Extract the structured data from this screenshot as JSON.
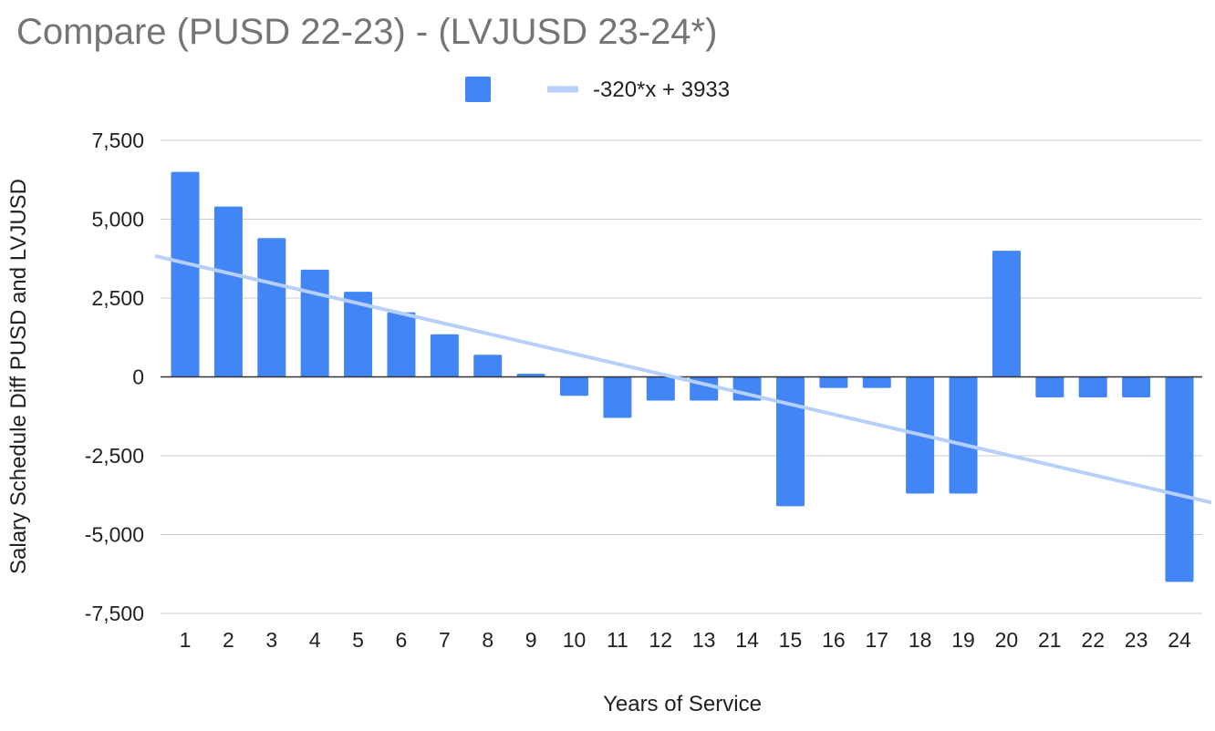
{
  "chart_data": {
    "type": "bar",
    "title": "Compare (PUSD 22-23) - (LVJUSD 23-24*)",
    "xlabel": "Years of Service",
    "ylabel": "Salary Schedule Diff PUSD and LVJUSD",
    "categories": [
      "1",
      "2",
      "3",
      "4",
      "5",
      "6",
      "7",
      "8",
      "9",
      "10",
      "11",
      "12",
      "13",
      "14",
      "15",
      "16",
      "17",
      "18",
      "19",
      "20",
      "21",
      "22",
      "23",
      "24"
    ],
    "series": [
      {
        "values": [
          6500,
          5400,
          4400,
          3400,
          2700,
          2050,
          1350,
          700,
          100,
          -600,
          -1300,
          -750,
          -750,
          -750,
          -4100,
          -350,
          -350,
          -3700,
          -3700,
          4000,
          -650,
          -650,
          -650,
          -6500
        ],
        "color": "#4285f4"
      }
    ],
    "trendline": {
      "name": "-320*x + 3933",
      "slope": -320,
      "intercept": 3933,
      "color": "#b6cffb"
    },
    "y_ticks": [
      "7,500",
      "5,000",
      "2,500",
      "0",
      "-2,500",
      "-5,000",
      "-7,500"
    ],
    "y_tick_values": [
      7500,
      5000,
      2500,
      0,
      -2500,
      -5000,
      -7500
    ],
    "ylim": [
      -7500,
      7500
    ],
    "grid": true,
    "legend_position": "top"
  }
}
